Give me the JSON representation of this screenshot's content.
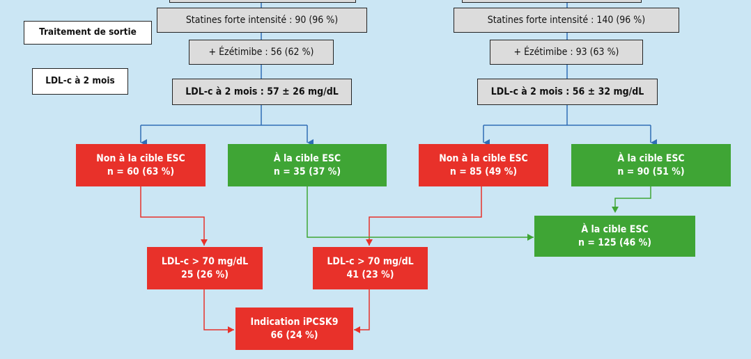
{
  "side_labels": {
    "treatment": "Traitement de sortie",
    "ldl": "LDL-c à 2 mois"
  },
  "left_column": {
    "statins": "Statines forte intensité : 90 (96 %)",
    "ezetimibe": "+ Ézétimibe :  56 (62 %)",
    "ldl": "LDL-c à 2 mois : 57 ± 26 mg/dL",
    "not_at_target": {
      "line1": "Non à la cible ESC",
      "line2": "n = 60 (63 %)"
    },
    "at_target": {
      "line1": "À la cible ESC",
      "line2": "n = 35 (37 %)"
    },
    "ldl_over_70": {
      "line1": "LDL-c > 70 mg/dL",
      "line2": "25 (26 %)"
    }
  },
  "right_column": {
    "statins": "Statines forte intensité : 140 (96 %)",
    "ezetimibe": "+ Ézétimibe :  93 (63 %)",
    "ldl": "LDL-c à 2 mois : 56 ± 32 mg/dL",
    "not_at_target": {
      "line1": "Non à la cible ESC",
      "line2": "n = 85 (49 %)"
    },
    "at_target": {
      "line1": "À la cible ESC",
      "line2": "n = 90 (51 %)"
    },
    "ldl_over_70": {
      "line1": "LDL-c > 70 mg/dL",
      "line2": "41 (23 %)"
    }
  },
  "total_at_target": {
    "line1": "À  la cible ESC",
    "line2": "n = 125 (46 %)"
  },
  "pcsk9": {
    "line1": "Indication iPCSK9",
    "line2": "66 (24 %)"
  },
  "colors": {
    "background": "#cbe6f4",
    "blue_line": "#2f6db5",
    "red": "#e8312a",
    "green": "#3fa535",
    "grey_box": "#dcdcdc"
  }
}
